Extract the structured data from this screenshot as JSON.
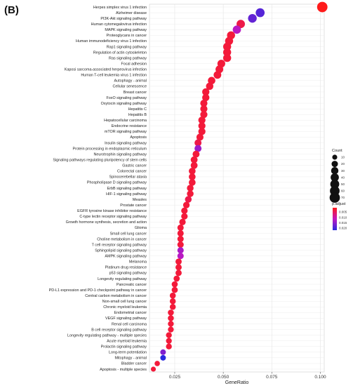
{
  "panel_label": "(B)",
  "chart_data": {
    "type": "scatter",
    "title": "",
    "xlabel": "GeneRatio",
    "ylabel": "",
    "xlim": [
      0.012,
      0.102
    ],
    "xticks": [
      "0.025",
      "0.050",
      "0.075",
      "0.100"
    ],
    "grid": true,
    "legend_position": "right",
    "size_legend": {
      "title": "Count",
      "labels": [
        "10",
        "20",
        "30",
        "40",
        "50",
        "60",
        "70"
      ]
    },
    "color_legend": {
      "title": "p.adjust",
      "labels": [
        "0.005",
        "0.010",
        "0.015",
        "0.020"
      ],
      "range": [
        0.001,
        0.022
      ],
      "low_color": "#ff1a1a",
      "high_color": "#2a2ae0"
    },
    "categories": [
      "Herpes simplex virus 1 infection",
      "Alzheimer disease",
      "PI3K-Akt signaling pathway",
      "Human cytomegalovirus infection",
      "MAPK signaling pathway",
      "Proteoglycans in cancer",
      "Human immunodeficiency virus 1 infection",
      "Rap1 signaling pathway",
      "Regulation of actin cytoskeleton",
      "Ras signaling pathway",
      "Focal adhesion",
      "Kaposi sarcoma-associated herpesvirus infection",
      "Human T-cell leukemia virus 1 infection",
      "Autophagy - animal",
      "Cellular senescence",
      "Breast cancer",
      "FoxO signaling pathway",
      "Oxytocin signaling pathway",
      "Hepatitis C",
      "Hepatitis B",
      "Hepatocellular carcinoma",
      "Endocrine resistance",
      "mTOR signaling pathway",
      "Apoptosis",
      "Insulin signaling pathway",
      "Protein processing in endoplasmic reticulum",
      "Neurotrophin signaling pathway",
      "Signaling pathways regulating pluripotency of stem cells",
      "Gastric cancer",
      "Colorectal cancer",
      "Spinocerebellar ataxia",
      "Phospholipase D signaling pathway",
      "ErbB signaling pathway",
      "HIF-1 signaling pathway",
      "Measles",
      "Prostate cancer",
      "EGFR tyrosine kinase inhibitor resistance",
      "C-type lectin receptor signaling pathway",
      "Growth hormone synthesis, secretion and action",
      "Glioma",
      "Small cell lung cancer",
      "Choline metabolism in cancer",
      "T cell receptor signaling pathway",
      "Sphingolipid signaling pathway",
      "AMPK signaling pathway",
      "Melanoma",
      "Platinum drug resistance",
      "p53 signaling pathway",
      "Longevity regulating pathway",
      "Pancreatic cancer",
      "PD-L1 expression and PD-1 checkpoint pathway in cancer",
      "Central carbon metabolism in cancer",
      "Non-small cell lung cancer",
      "Chronic myeloid leukemia",
      "Endometrial cancer",
      "VEGF signaling pathway",
      "Renal cell carcinoma",
      "B cell receptor signaling pathway",
      "Longevity regulating pathway - multiple species",
      "Acute myeloid leukemia",
      "Prolactin signaling pathway",
      "Long-term potentiation",
      "Mitophagy - animal",
      "Bladder cancer",
      "Apoptosis - multiple species"
    ],
    "gene_ratio": [
      0.101,
      0.069,
      0.065,
      0.059,
      0.057,
      0.054,
      0.053,
      0.052,
      0.052,
      0.052,
      0.049,
      0.048,
      0.047,
      0.044,
      0.043,
      0.041,
      0.041,
      0.04,
      0.04,
      0.04,
      0.039,
      0.039,
      0.039,
      0.038,
      0.037,
      0.037,
      0.036,
      0.035,
      0.035,
      0.034,
      0.034,
      0.034,
      0.033,
      0.033,
      0.032,
      0.031,
      0.03,
      0.03,
      0.029,
      0.028,
      0.028,
      0.028,
      0.028,
      0.028,
      0.028,
      0.027,
      0.027,
      0.027,
      0.026,
      0.025,
      0.025,
      0.024,
      0.024,
      0.024,
      0.023,
      0.023,
      0.023,
      0.023,
      0.022,
      0.022,
      0.022,
      0.019,
      0.019,
      0.016,
      0.014
    ],
    "count": [
      72,
      49,
      46,
      42,
      40,
      38,
      38,
      37,
      37,
      37,
      35,
      34,
      33,
      31,
      30,
      29,
      29,
      28,
      28,
      28,
      28,
      28,
      28,
      27,
      26,
      26,
      26,
      25,
      25,
      24,
      24,
      24,
      23,
      23,
      23,
      22,
      21,
      21,
      21,
      20,
      20,
      20,
      20,
      20,
      20,
      19,
      19,
      19,
      18,
      18,
      18,
      17,
      17,
      17,
      17,
      17,
      16,
      16,
      16,
      16,
      16,
      14,
      14,
      12,
      10
    ],
    "p_adjust": [
      0.001,
      0.019,
      0.018,
      0.004,
      0.012,
      0.003,
      0.003,
      0.003,
      0.003,
      0.003,
      0.003,
      0.003,
      0.003,
      0.003,
      0.003,
      0.003,
      0.003,
      0.003,
      0.003,
      0.003,
      0.003,
      0.003,
      0.003,
      0.003,
      0.004,
      0.014,
      0.003,
      0.003,
      0.003,
      0.003,
      0.003,
      0.003,
      0.003,
      0.003,
      0.004,
      0.003,
      0.003,
      0.003,
      0.003,
      0.003,
      0.003,
      0.003,
      0.003,
      0.013,
      0.012,
      0.003,
      0.003,
      0.003,
      0.003,
      0.003,
      0.003,
      0.003,
      0.003,
      0.003,
      0.003,
      0.003,
      0.003,
      0.003,
      0.003,
      0.003,
      0.003,
      0.016,
      0.022,
      0.003,
      0.003
    ]
  }
}
